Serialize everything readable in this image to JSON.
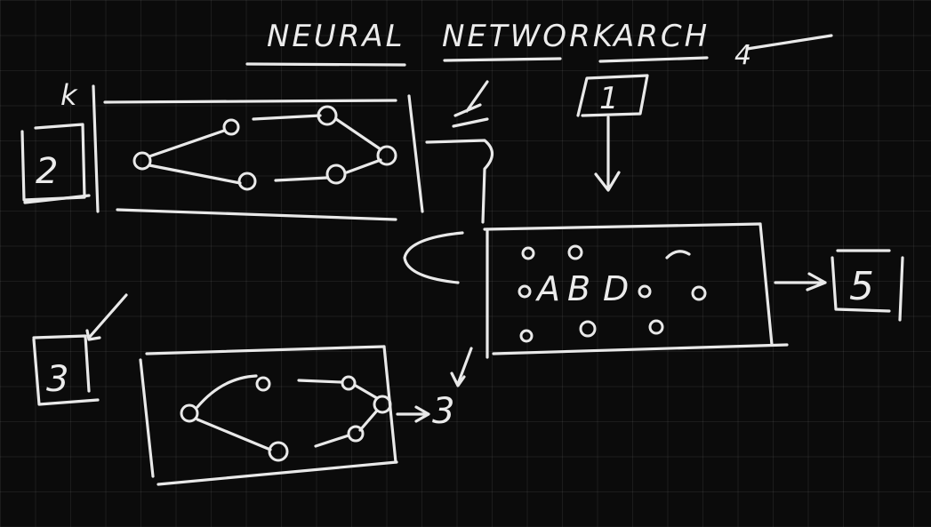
{
  "title": {
    "word1": "NEURAL",
    "word2": "NETWORK",
    "word3": "ARCH"
  },
  "labels": {
    "box_2": "2",
    "box_3": "3",
    "box_1": "1",
    "box_5": "5",
    "tick_top": "k",
    "four": "4",
    "three_out": "3"
  },
  "inner": {
    "a": "A",
    "b": "B",
    "d": "D"
  },
  "colors": {
    "background": "#0b0b0b",
    "ink": "#e9e9e9"
  }
}
